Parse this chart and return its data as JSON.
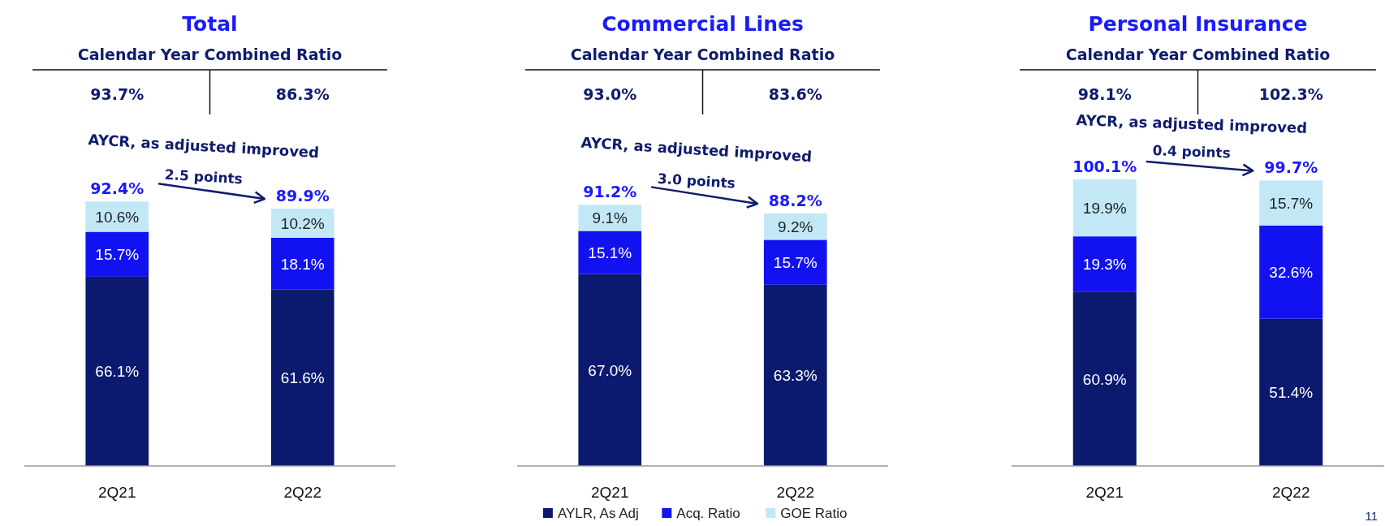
{
  "chart_data": [
    {
      "type": "bar",
      "title": "Total",
      "subtitle": "Calendar Year Combined Ratio",
      "categories": [
        "2Q21",
        "2Q22"
      ],
      "stacked": true,
      "legend": false,
      "series": [
        {
          "color": "#0b1a6e",
          "values": [
            66.1,
            61.6
          ],
          "value_labels": [
            "66.1%",
            "61.6%"
          ]
        },
        {
          "color": "#1212f0",
          "values": [
            15.7,
            18.1
          ],
          "value_labels": [
            "15.7%",
            "18.1%"
          ]
        },
        {
          "color": "#c2e8f6",
          "values": [
            10.6,
            10.2
          ],
          "value_labels": [
            "10.6%",
            "10.2%"
          ]
        }
      ],
      "totals": [
        "92.4%",
        "89.9%"
      ],
      "annotations": [
        "93.7%",
        "86.3%",
        "AYCR, as adjusted improved",
        "2.5 points"
      ]
    },
    {
      "type": "bar",
      "title": "Commercial Lines",
      "subtitle": "Calendar Year Combined Ratio",
      "categories": [
        "2Q21",
        "2Q22"
      ],
      "stacked": true,
      "legend": "bottom",
      "series": [
        {
          "name": "AYLR, As Adj",
          "color": "#0b1a6e",
          "values": [
            67.0,
            63.3
          ],
          "value_labels": [
            "67.0%",
            "63.3%"
          ]
        },
        {
          "name": "Acq. Ratio",
          "color": "#1212f0",
          "values": [
            15.1,
            15.7
          ],
          "value_labels": [
            "15.1%",
            "15.7%"
          ]
        },
        {
          "name": "GOE Ratio",
          "color": "#c2e8f6",
          "values": [
            9.1,
            9.2
          ],
          "value_labels": [
            "9.1%",
            "9.2%"
          ]
        }
      ],
      "totals": [
        "91.2%",
        "88.2%"
      ],
      "annotations": [
        "93.0%",
        "83.6%",
        "AYCR, as adjusted improved",
        "3.0 points"
      ]
    },
    {
      "type": "bar",
      "title": "Personal Insurance",
      "subtitle": "Calendar Year Combined Ratio",
      "categories": [
        "2Q21",
        "2Q22"
      ],
      "stacked": true,
      "legend": false,
      "series": [
        {
          "color": "#0b1a6e",
          "values": [
            60.9,
            51.4
          ],
          "value_labels": [
            "60.9%",
            "51.4%"
          ]
        },
        {
          "color": "#1212f0",
          "values": [
            19.3,
            32.6
          ],
          "value_labels": [
            "19.3%",
            "32.6%"
          ]
        },
        {
          "color": "#c2e8f6",
          "values": [
            19.9,
            15.7
          ],
          "value_labels": [
            "19.9%",
            "15.7%"
          ]
        }
      ],
      "totals": [
        "100.1%",
        "99.7%"
      ],
      "annotations": [
        "98.1%",
        "102.3%",
        "AYCR, as adjusted improved",
        "0.4 points",
        "11"
      ]
    }
  ]
}
